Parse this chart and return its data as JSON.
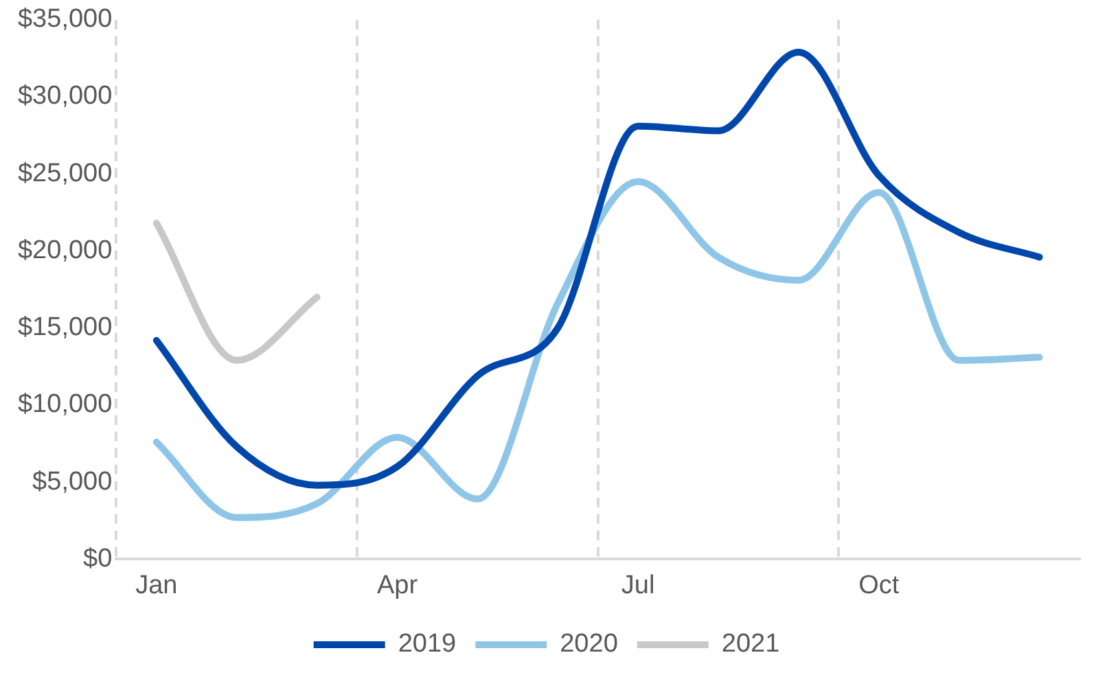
{
  "chart_data": {
    "type": "line",
    "categories": [
      "Jan",
      null,
      null,
      "Apr",
      null,
      null,
      "Jul",
      null,
      null,
      "Oct",
      null,
      null
    ],
    "series": [
      {
        "name": "2019",
        "color": "#0047ab",
        "values": [
          14200,
          7300,
          4800,
          6000,
          11900,
          15000,
          28100,
          27800,
          32900,
          24900,
          21200,
          19600
        ]
      },
      {
        "name": "2020",
        "color": "#8fc6e8",
        "values": [
          7600,
          2700,
          3600,
          7900,
          3900,
          16600,
          24500,
          19600,
          18100,
          23800,
          12900,
          13100
        ]
      },
      {
        "name": "2021",
        "color": "#c8c8c8",
        "values": [
          21800,
          12900,
          17000,
          null,
          null,
          null,
          null,
          null,
          null,
          null,
          null,
          null
        ]
      }
    ],
    "ylim": [
      0,
      35000
    ],
    "yticks": [
      {
        "value": 0,
        "label": "$0"
      },
      {
        "value": 5000,
        "label": "$5,000"
      },
      {
        "value": 10000,
        "label": "$10,000"
      },
      {
        "value": 15000,
        "label": "$15,000"
      },
      {
        "value": 20000,
        "label": "$20,000"
      },
      {
        "value": 25000,
        "label": "$25,000"
      },
      {
        "value": 30000,
        "label": "$30,000"
      },
      {
        "value": 35000,
        "label": "$35,000"
      }
    ],
    "grid": "x",
    "legend": "bottom",
    "marker": "none",
    "line_style": "solid"
  }
}
